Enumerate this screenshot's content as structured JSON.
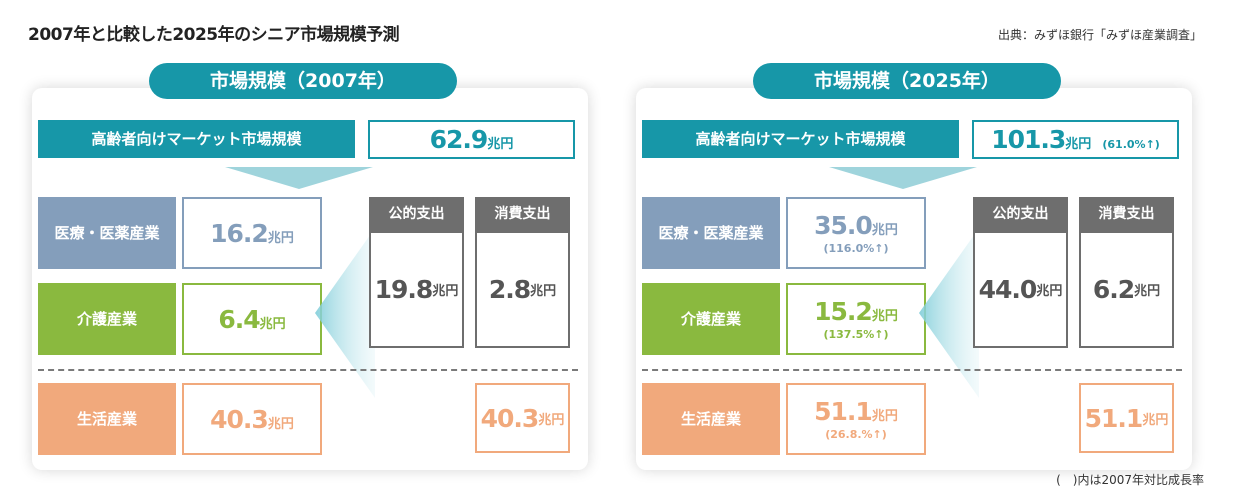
{
  "page_title": "2007年と比較した2025年のシニア市場規模予測",
  "source": "出典：みずほ銀行「みずほ産業調査」",
  "footnote": "(　)内は2007年対比成長率",
  "unit": "兆円",
  "colors": {
    "teal": "#1797a8",
    "medical": "#849ebb",
    "care": "#8ab93f",
    "life": "#f1a97c",
    "gray": "#6e6e6e"
  },
  "panels": [
    {
      "title": "市場規模（2007年）",
      "head_label": "高齢者向けマーケット市場規模",
      "total": "62.9",
      "total_pct": "",
      "categories": {
        "medical": {
          "label": "医療・医薬産業",
          "value": "16.2",
          "pct": ""
        },
        "care": {
          "label": "介護産業",
          "value": "6.4",
          "pct": ""
        },
        "life": {
          "label": "生活産業",
          "value": "40.3",
          "pct": ""
        }
      },
      "columns": [
        {
          "label": "公的支出",
          "value": "19.8"
        },
        {
          "label": "消費支出",
          "value": "2.8"
        }
      ],
      "life_right": "40.3"
    },
    {
      "title": "市場規模（2025年）",
      "head_label": "高齢者向けマーケット市場規模",
      "total": "101.3",
      "total_pct": "(61.0%↑)",
      "categories": {
        "medical": {
          "label": "医療・医薬産業",
          "value": "35.0",
          "pct": "(116.0%↑)"
        },
        "care": {
          "label": "介護産業",
          "value": "15.2",
          "pct": "(137.5%↑)"
        },
        "life": {
          "label": "生活産業",
          "value": "51.1",
          "pct": "(26.8.%↑)"
        }
      },
      "columns": [
        {
          "label": "公的支出",
          "value": "44.0"
        },
        {
          "label": "消費支出",
          "value": "6.2"
        }
      ],
      "life_right": "51.1"
    }
  ]
}
